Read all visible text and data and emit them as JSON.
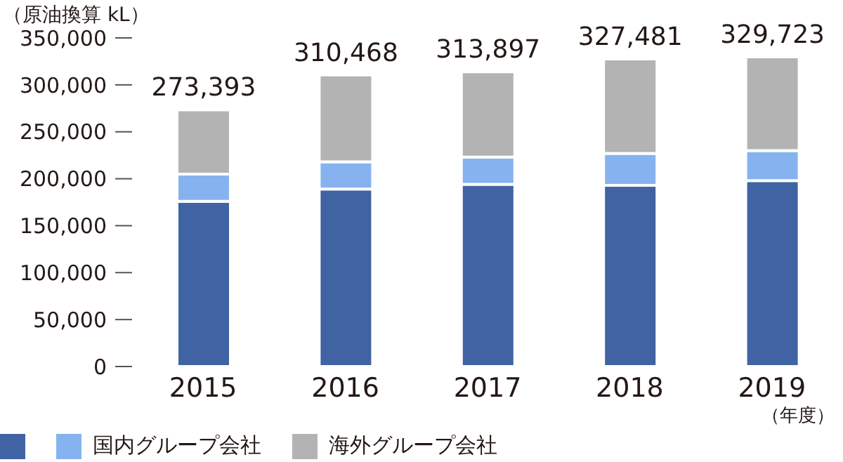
{
  "chart_data": {
    "type": "bar",
    "stacked": true,
    "ylabel": "（原油換算 kL）",
    "xlabel": "（年度）",
    "categories": [
      "2015",
      "2016",
      "2017",
      "2018",
      "2019"
    ],
    "series": [
      {
        "color": "#4063a3",
        "values": [
          176000,
          189000,
          194000,
          193000,
          198000
        ]
      },
      {
        "name": "国内グループ会社",
        "color": "#86b3ef",
        "values": [
          29000,
          29000,
          29000,
          34000,
          32000
        ]
      },
      {
        "name": "海外グループ会社",
        "color": "#b3b3b3",
        "values": [
          68393,
          92468,
          90897,
          100481,
          99723
        ]
      }
    ],
    "totals": [
      "273,393",
      "310,468",
      "313,897",
      "327,481",
      "329,723"
    ],
    "ylim": [
      0,
      350000
    ],
    "yticks": [
      0,
      {
        "value": 50000,
        "label": "50,000"
      },
      {
        "value": 100000,
        "label": "100,000"
      },
      {
        "value": 150000,
        "label": "150,000"
      },
      {
        "value": 200000,
        "label": "200,000"
      },
      {
        "value": 250000,
        "label": "250,000"
      },
      {
        "value": 300000,
        "label": "300,000"
      },
      {
        "value": 350000,
        "label": "350,000"
      }
    ],
    "grid": false,
    "legend": "bottom"
  }
}
